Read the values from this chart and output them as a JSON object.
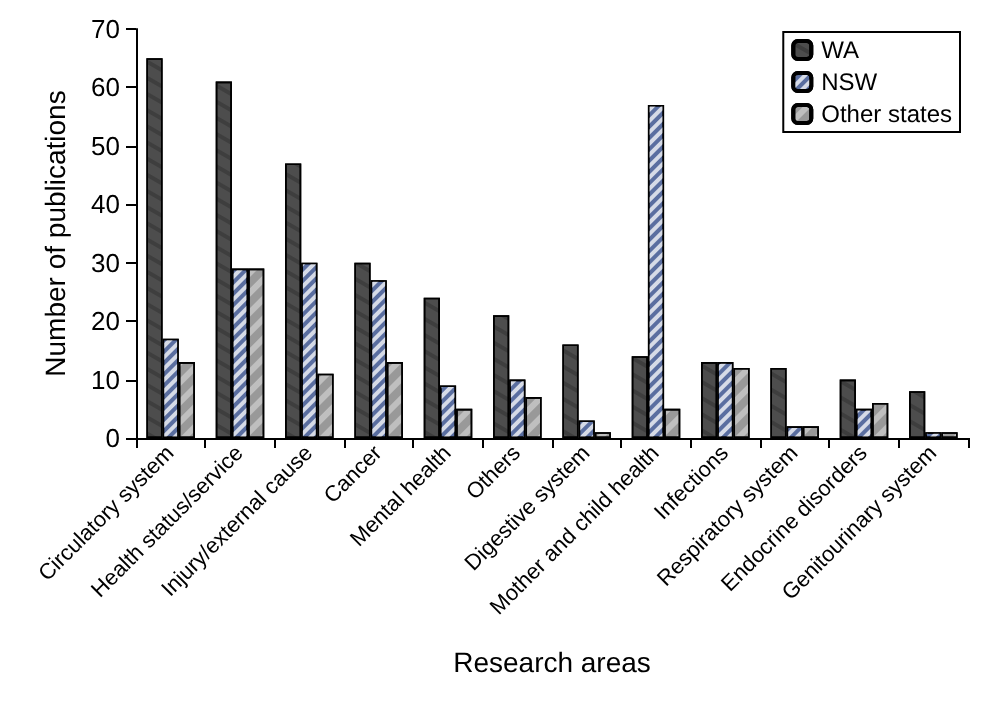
{
  "chart_data": {
    "type": "bar",
    "xlabel": "Research areas",
    "ylabel": "Number of publications",
    "categories": [
      "Circulatory system",
      "Health status/service",
      "Injury/external cause",
      "Cancer",
      "Mental health",
      "Others",
      "Digestive system",
      "Mother and child health",
      "Infections",
      "Respiratory system",
      "Endocrine disorders",
      "Genitourinary system"
    ],
    "series": [
      {
        "name": "WA",
        "color": "#4d4d4d",
        "values": [
          65,
          61,
          47,
          30,
          24,
          21,
          16,
          14,
          13,
          12,
          10,
          8
        ]
      },
      {
        "name": "NSW",
        "color": "#5a6ea0",
        "values": [
          17,
          29,
          30,
          27,
          9,
          10,
          3,
          57,
          13,
          2,
          5,
          1
        ]
      },
      {
        "name": "Other states",
        "color": "#bfbfbf",
        "values": [
          13,
          29,
          11,
          13,
          5,
          7,
          1,
          5,
          12,
          2,
          6,
          1
        ]
      }
    ],
    "ylim": [
      0,
      70
    ],
    "yticks": [
      0,
      10,
      20,
      30,
      40,
      50,
      60,
      70
    ],
    "grid": false,
    "legend": "top right"
  }
}
